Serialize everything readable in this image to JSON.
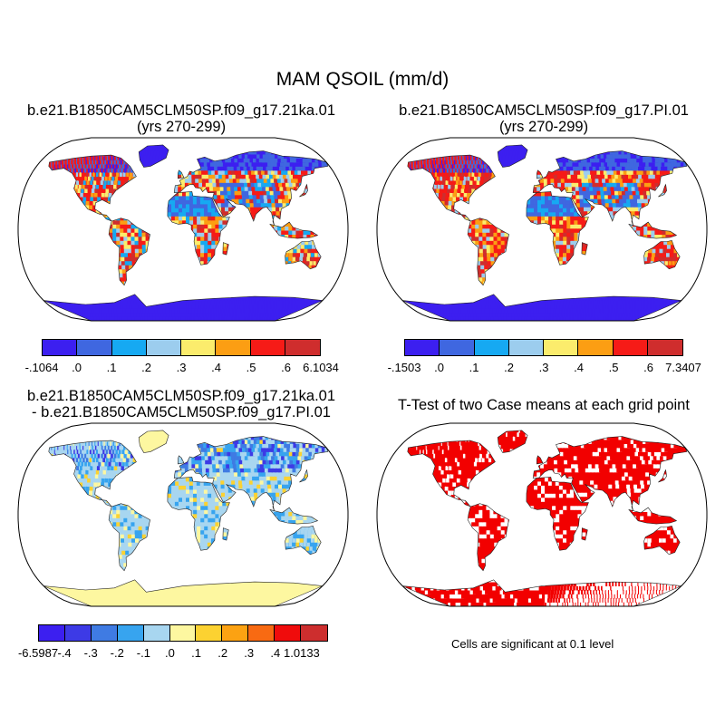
{
  "title": "MAM QSOIL (mm/d)",
  "panels": [
    {
      "title_lines": [
        "b.e21.B1850CAM5CLM50SP.f09_g17.21ka.01",
        "(yrs 270-299)"
      ],
      "colorbar": {
        "colors": [
          "#3c1ff0",
          "#3f67e0",
          "#16a9f2",
          "#9ccdee",
          "#fbec6c",
          "#fc9e13",
          "#f61b17",
          "#cf2d2d"
        ],
        "labels": [
          "-.1064",
          ".0",
          ".1",
          ".2",
          ".3",
          ".4",
          ".5",
          ".6",
          "6.1034"
        ]
      }
    },
    {
      "title_lines": [
        "b.e21.B1850CAM5CLM50SP.f09_g17.PI.01",
        "(yrs 270-299)"
      ],
      "colorbar": {
        "colors": [
          "#3c1ff0",
          "#3f67e0",
          "#16a9f2",
          "#9ccdee",
          "#fbec6c",
          "#fc9e13",
          "#f61b17",
          "#cf2d2d"
        ],
        "labels": [
          "-.1503",
          ".0",
          ".1",
          ".2",
          ".3",
          ".4",
          ".5",
          ".6",
          "7.3407"
        ]
      }
    },
    {
      "title_lines": [
        "b.e21.B1850CAM5CLM50SP.f09_g17.21ka.01",
        "- b.e21.B1850CAM5CLM50SP.f09_g17.PI.01"
      ],
      "colorbar": {
        "colors": [
          "#3c1ff0",
          "#3d3ae6",
          "#3f7be3",
          "#37a4ef",
          "#a8d6f0",
          "#fdf7a0",
          "#fcd231",
          "#fca212",
          "#f86a12",
          "#f00c0c",
          "#cd2e2e"
        ],
        "labels": [
          "-6.5987",
          "-.4",
          "-.3",
          "-.2",
          "-.1",
          ".0",
          ".1",
          ".2",
          ".3",
          ".4",
          "1.0133"
        ]
      }
    },
    {
      "title_lines": [
        "T-Test of two Case means at each grid point"
      ],
      "note": "Cells are significant at 0.1 level"
    }
  ],
  "map_colors": {
    "ocean": "#ffffff",
    "ice": "#3c1ff0",
    "ice_diff": "#fdf7a0",
    "significant": "#f20000"
  }
}
